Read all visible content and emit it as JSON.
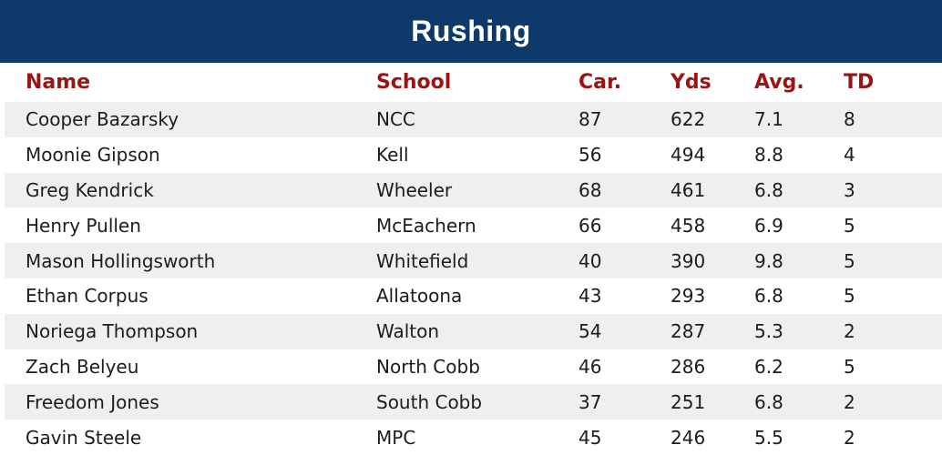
{
  "title": "Rushing",
  "colors": {
    "title_bar": "#0d3a6b",
    "header_text": "#9b1414",
    "row_stripe": "#efefef",
    "body_text": "#1c1c1c",
    "title_text": "#ffffff"
  },
  "chart_data": {
    "type": "table",
    "title": "Rushing",
    "columns": [
      "Name",
      "School",
      "Car.",
      "Yds",
      "Avg.",
      "TD"
    ],
    "rows": [
      {
        "name": "Cooper Bazarsky",
        "school": "NCC",
        "car": 87,
        "yds": 622,
        "avg": 7.1,
        "td": 8
      },
      {
        "name": "Moonie Gipson",
        "school": "Kell",
        "car": 56,
        "yds": 494,
        "avg": 8.8,
        "td": 4
      },
      {
        "name": "Greg Kendrick",
        "school": "Wheeler",
        "car": 68,
        "yds": 461,
        "avg": 6.8,
        "td": 3
      },
      {
        "name": "Henry Pullen",
        "school": "McEachern",
        "car": 66,
        "yds": 458,
        "avg": 6.9,
        "td": 5
      },
      {
        "name": "Mason Hollingsworth",
        "school": "Whitefield",
        "car": 40,
        "yds": 390,
        "avg": 9.8,
        "td": 5
      },
      {
        "name": "Ethan Corpus",
        "school": "Allatoona",
        "car": 43,
        "yds": 293,
        "avg": 6.8,
        "td": 5
      },
      {
        "name": "Noriega Thompson",
        "school": "Walton",
        "car": 54,
        "yds": 287,
        "avg": 5.3,
        "td": 2
      },
      {
        "name": "Zach Belyeu",
        "school": "North Cobb",
        "car": 46,
        "yds": 286,
        "avg": 6.2,
        "td": 5
      },
      {
        "name": "Freedom Jones",
        "school": "South Cobb",
        "car": 37,
        "yds": 251,
        "avg": 6.8,
        "td": 2
      },
      {
        "name": "Gavin Steele",
        "school": "MPC",
        "car": 45,
        "yds": 246,
        "avg": 5.5,
        "td": 2
      }
    ]
  }
}
